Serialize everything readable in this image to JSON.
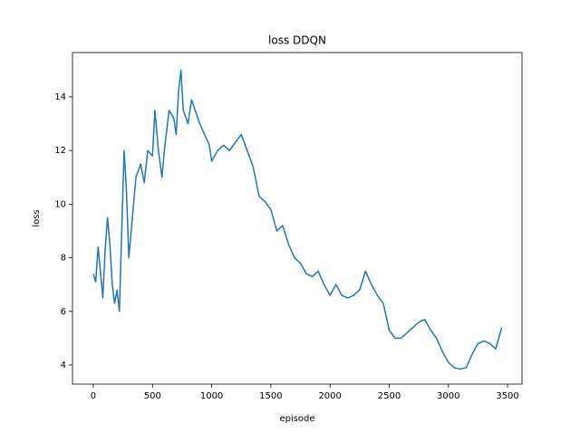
{
  "chart_data": {
    "type": "line",
    "title": "loss DDQN",
    "xlabel": "episode",
    "ylabel": "loss",
    "x": [
      0,
      20,
      40,
      60,
      80,
      100,
      120,
      140,
      160,
      180,
      200,
      220,
      240,
      260,
      280,
      300,
      330,
      360,
      400,
      430,
      460,
      500,
      520,
      550,
      580,
      600,
      640,
      680,
      700,
      720,
      740,
      760,
      800,
      830,
      860,
      900,
      940,
      980,
      1000,
      1050,
      1100,
      1150,
      1200,
      1250,
      1300,
      1350,
      1400,
      1450,
      1500,
      1550,
      1600,
      1650,
      1700,
      1750,
      1800,
      1850,
      1900,
      1950,
      2000,
      2050,
      2100,
      2150,
      2200,
      2250,
      2300,
      2350,
      2400,
      2450,
      2500,
      2550,
      2600,
      2650,
      2700,
      2750,
      2800,
      2850,
      2900,
      2950,
      3000,
      3050,
      3100,
      3150,
      3200,
      3250,
      3300,
      3350,
      3400,
      3450
    ],
    "series": [
      {
        "name": "loss",
        "color": "#1f77b4",
        "values": [
          7.4,
          7.1,
          8.4,
          7.5,
          6.5,
          8.3,
          9.5,
          8.5,
          7.0,
          6.3,
          6.8,
          6.0,
          9.0,
          12.0,
          10.5,
          8.0,
          9.5,
          11.0,
          11.5,
          10.8,
          12.0,
          11.8,
          13.5,
          12.0,
          11.0,
          12.0,
          13.5,
          13.2,
          12.6,
          14.2,
          15.0,
          13.5,
          13.0,
          13.9,
          13.5,
          13.0,
          12.6,
          12.2,
          11.6,
          12.0,
          12.2,
          12.0,
          12.3,
          12.6,
          12.0,
          11.4,
          10.3,
          10.1,
          9.8,
          9.0,
          9.2,
          8.5,
          8.0,
          7.8,
          7.4,
          7.3,
          7.5,
          7.0,
          6.6,
          7.0,
          6.6,
          6.5,
          6.6,
          6.8,
          7.5,
          7.0,
          6.6,
          6.3,
          5.3,
          5.0,
          5.0,
          5.2,
          5.4,
          5.6,
          5.7,
          5.3,
          5.0,
          4.5,
          4.1,
          3.9,
          3.85,
          3.9,
          4.4,
          4.8,
          4.9,
          4.8,
          4.6,
          5.4
        ]
      }
    ],
    "xlim": [
      -176,
      3622
    ],
    "ylim": [
      3.29,
      15.655
    ],
    "xticks": [
      0,
      500,
      1000,
      1500,
      2000,
      2500,
      3000,
      3500
    ],
    "yticks": [
      4,
      6,
      8,
      10,
      12,
      14
    ]
  }
}
